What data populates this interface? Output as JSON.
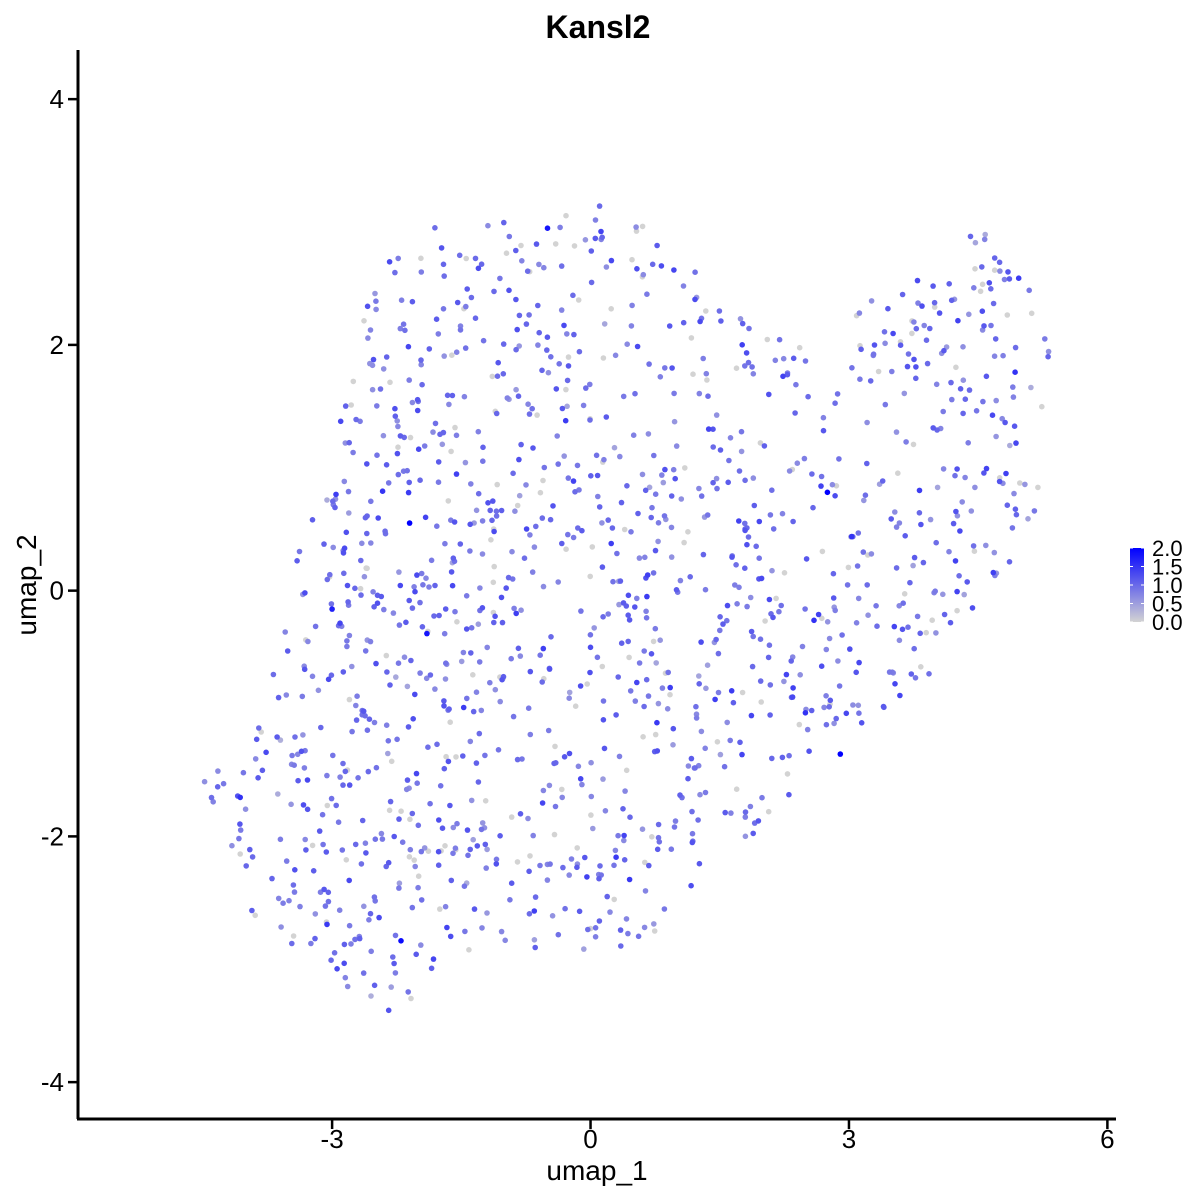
{
  "chart_data": {
    "type": "scatter",
    "title": "Kansl2",
    "xlabel": "umap_1",
    "ylabel": "umap_2",
    "xlim": [
      -5.95,
      6.1
    ],
    "ylim": [
      -4.3,
      4.4
    ],
    "x_ticks": [
      -3,
      0,
      3,
      6
    ],
    "y_ticks": [
      -4,
      -2,
      0,
      2,
      4
    ],
    "x_tick_labels": [
      "-3",
      "0",
      "3",
      "6"
    ],
    "y_tick_labels": [
      "-4",
      "-2",
      "0",
      "2",
      "4"
    ],
    "grid": false,
    "legend": {
      "type": "colorbar",
      "placement": "right",
      "min": 0,
      "max": 2.0,
      "ticks": [
        "0.0",
        "0.5",
        "1.0",
        "1.5",
        "2.0"
      ],
      "color_low": "#d3d3d3",
      "color_high": "#0000ff"
    },
    "region_polygon": [
      [
        -4.6,
        -1.3
      ],
      [
        -4.3,
        -1.4
      ],
      [
        -4.1,
        -1.2
      ],
      [
        -3.6,
        -0.5
      ],
      [
        -3.4,
        0.3
      ],
      [
        -3.1,
        1.0
      ],
      [
        -2.9,
        1.9
      ],
      [
        -2.6,
        2.3
      ],
      [
        -2.2,
        2.9
      ],
      [
        -1.5,
        3.0
      ],
      [
        -0.6,
        3.05
      ],
      [
        0.2,
        3.15
      ],
      [
        1.1,
        2.85
      ],
      [
        1.6,
        2.5
      ],
      [
        2.0,
        2.1
      ],
      [
        2.6,
        2.0
      ],
      [
        3.3,
        2.4
      ],
      [
        3.9,
        2.6
      ],
      [
        4.4,
        3.05
      ],
      [
        5.0,
        2.6
      ],
      [
        5.4,
        2.0
      ],
      [
        5.3,
        1.4
      ],
      [
        5.2,
        0.7
      ],
      [
        4.8,
        0.1
      ],
      [
        4.2,
        -0.5
      ],
      [
        3.6,
        -0.9
      ],
      [
        3.1,
        -1.1
      ],
      [
        2.5,
        -1.5
      ],
      [
        2.1,
        -1.9
      ],
      [
        1.3,
        -2.3
      ],
      [
        0.8,
        -2.8
      ],
      [
        0.1,
        -3.0
      ],
      [
        -0.8,
        -2.9
      ],
      [
        -1.6,
        -3.0
      ],
      [
        -2.0,
        -3.3
      ],
      [
        -2.4,
        -3.5
      ],
      [
        -2.9,
        -3.2
      ],
      [
        -3.6,
        -2.9
      ],
      [
        -4.1,
        -2.6
      ],
      [
        -4.3,
        -2.1
      ]
    ],
    "point_count": 1400,
    "expression_mean": 0.95,
    "expression_zero_fraction": 0.12,
    "highlighted_points": [
      {
        "x": -2.1,
        "y": 0.55,
        "value": 2.0
      },
      {
        "x": 2.75,
        "y": 0.8,
        "value": 2.0
      },
      {
        "x": 2.9,
        "y": -1.33,
        "value": 2.0
      },
      {
        "x": -2.2,
        "y": -2.85,
        "value": 1.9
      },
      {
        "x": -0.5,
        "y": 2.95,
        "value": 1.8
      },
      {
        "x": -1.9,
        "y": -0.35,
        "value": 1.8
      },
      {
        "x": -3.0,
        "y": -0.15,
        "value": 1.7
      }
    ]
  }
}
